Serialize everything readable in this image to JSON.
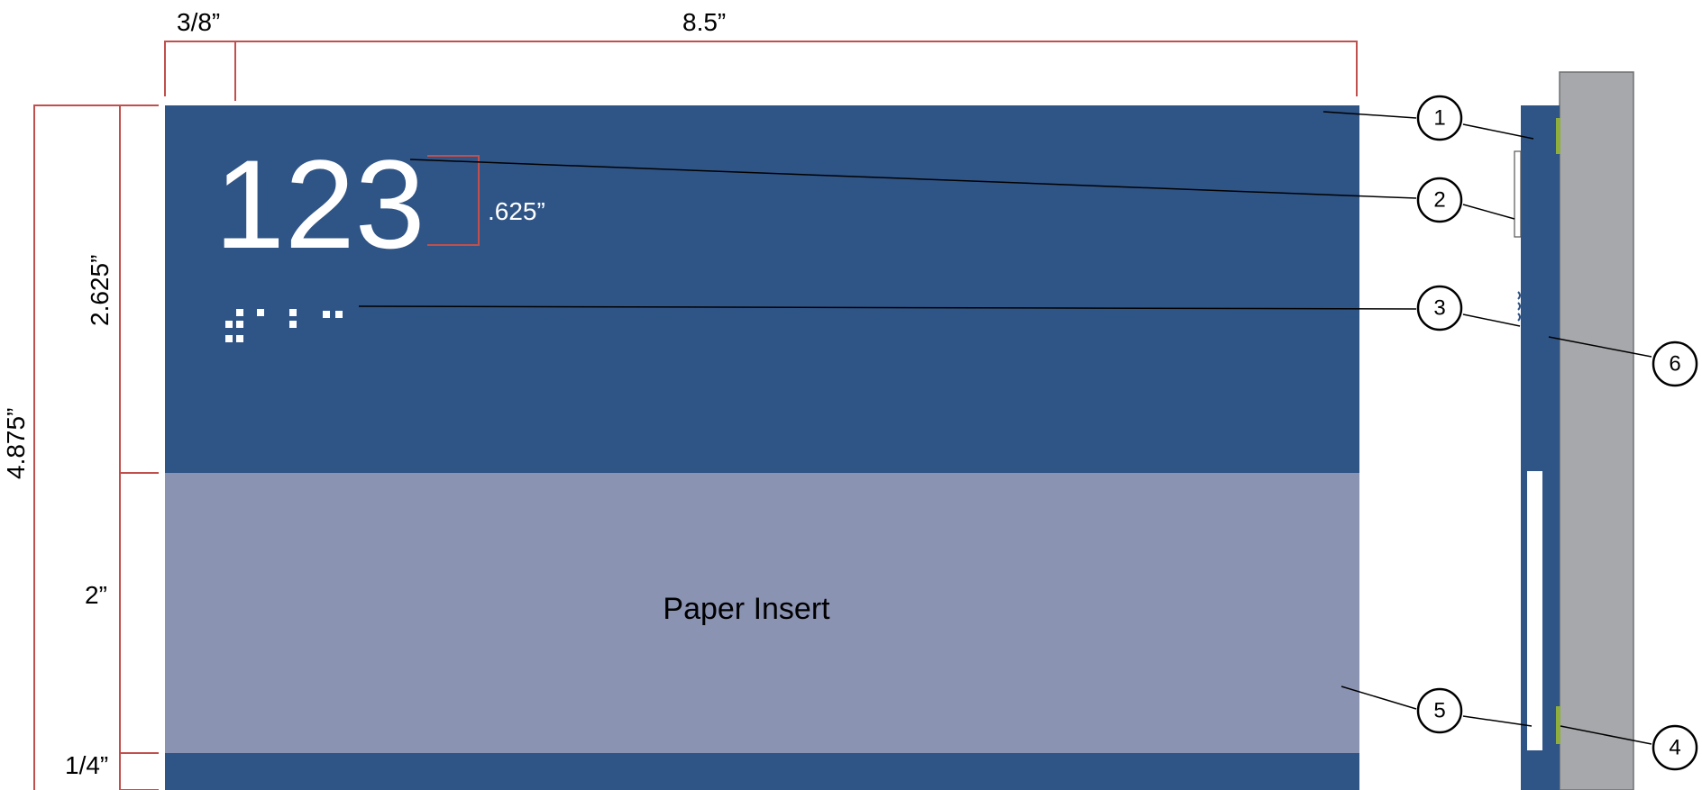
{
  "dimensions": {
    "width": "8.5”",
    "margin_left": "3/8”",
    "total_height": "4.875”",
    "top_section": "2.625”",
    "insert_height": "2”",
    "bottom_strip": "1/4”",
    "character_height": ".625”"
  },
  "sign": {
    "room_number": "123",
    "insert_label": "Paper Insert"
  },
  "callouts": [
    {
      "label": "1"
    },
    {
      "label": "2"
    },
    {
      "label": "3"
    },
    {
      "label": "4"
    },
    {
      "label": "5"
    },
    {
      "label": "6"
    }
  ],
  "colors": {
    "sign_blue": "#2f5486",
    "insert_lavender": "#8b93b3",
    "wall_gray": "#a6a8ab",
    "dimension_red": "#c0504d",
    "accent_green": "#8fae3c"
  }
}
